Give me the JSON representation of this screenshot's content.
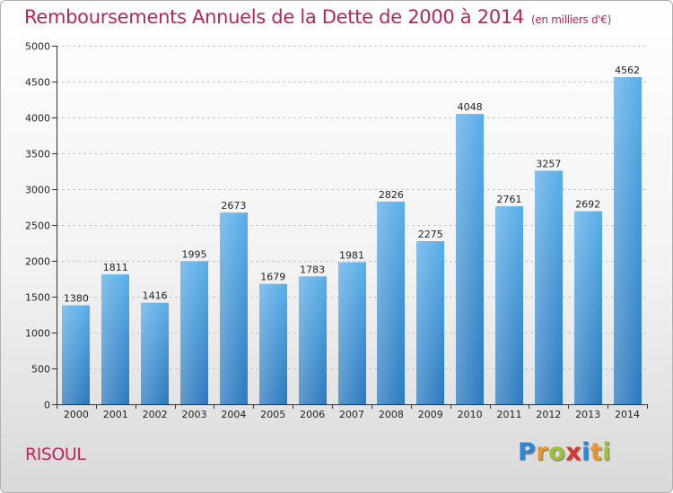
{
  "title": "Remboursements Annuels de la Dette de 2000 à 2014",
  "subtitle": "(en milliers d'€)",
  "commune": "RISOUL",
  "logo": {
    "letters": [
      "P",
      "r",
      "o",
      "x",
      "i",
      "t",
      "i"
    ],
    "colors": [
      "#2e86d6",
      "#e8962a",
      "#9ac234",
      "#d63a2b",
      "#2e86d6",
      "#e8962a",
      "#9ac234"
    ]
  },
  "chart_data": {
    "type": "bar",
    "categories": [
      "2000",
      "2001",
      "2002",
      "2003",
      "2004",
      "2005",
      "2006",
      "2007",
      "2008",
      "2009",
      "2010",
      "2011",
      "2012",
      "2013",
      "2014"
    ],
    "values": [
      1380,
      1811,
      1416,
      1995,
      2673,
      1679,
      1783,
      1981,
      2826,
      2275,
      4048,
      2761,
      3257,
      2692,
      4562
    ],
    "ylim": [
      0,
      5000
    ],
    "yticks": [
      0,
      500,
      1000,
      1500,
      2000,
      2500,
      3000,
      3500,
      4000,
      4500,
      5000
    ],
    "grid": true,
    "bar_color": "#3d8fd6",
    "title_color": "#b5265e"
  }
}
